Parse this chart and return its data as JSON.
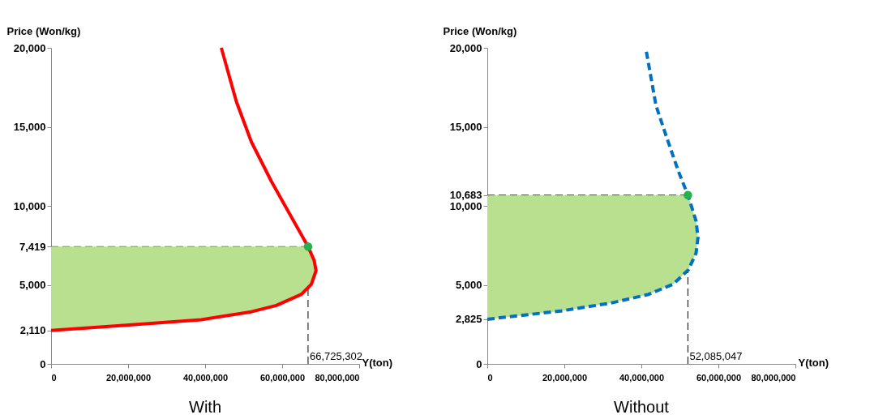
{
  "chart_data": [
    {
      "type": "line",
      "title": "With",
      "xlabel": "Y(ton)",
      "ylabel": "Price (Won/kg)",
      "xlim": [
        0,
        80000000
      ],
      "ylim": [
        0,
        20000
      ],
      "xticks": [
        {
          "value": 0,
          "label": "0"
        },
        {
          "value": 20000000,
          "label": "20,000,000"
        },
        {
          "value": 40000000,
          "label": "40,000,000"
        },
        {
          "value": 60000000,
          "label": "60,000,000"
        },
        {
          "value": 80000000,
          "label": "80,000,000"
        }
      ],
      "yticks": [
        {
          "value": 0,
          "label": "0"
        },
        {
          "value": 2110,
          "label": "2,110"
        },
        {
          "value": 5000,
          "label": "5,000"
        },
        {
          "value": 7419,
          "label": "7,419"
        },
        {
          "value": 10000,
          "label": "10,000"
        },
        {
          "value": 15000,
          "label": "15,000"
        },
        {
          "value": 20000,
          "label": "20,000"
        }
      ],
      "series": [
        {
          "color": "#ff0000",
          "line_style": "solid",
          "x": [
            0,
            19500000,
            39000000,
            52000000,
            58500000,
            65000000,
            67600000,
            68800000,
            68300000,
            66725302,
            61800000,
            57200000,
            52000000,
            48100000,
            44200000
          ],
          "values": [
            2110,
            2450,
            2800,
            3300,
            3700,
            4400,
            5050,
            5900,
            6550,
            7419,
            9550,
            11550,
            14050,
            16600,
            20000
          ]
        },
        {
          "type": "scatter",
          "color": "#22b14c",
          "marker": "circle",
          "x": [
            66725302
          ],
          "values": [
            7419
          ]
        }
      ],
      "ref_lines": [
        {
          "axis": "y",
          "value": 7419
        },
        {
          "axis": "x",
          "value": 66725302,
          "label": "66,725,302"
        }
      ]
    },
    {
      "type": "line",
      "title": "Without",
      "xlabel": "Y(ton)",
      "ylabel": "Price (Won/kg)",
      "xlim": [
        0,
        80000000
      ],
      "ylim": [
        0,
        20000
      ],
      "xticks": [
        {
          "value": 0,
          "label": "0"
        },
        {
          "value": 20000000,
          "label": "20,000,000"
        },
        {
          "value": 40000000,
          "label": "40,000,000"
        },
        {
          "value": 60000000,
          "label": "60,000,000"
        },
        {
          "value": 80000000,
          "label": "80,000,000"
        }
      ],
      "yticks": [
        {
          "value": 0,
          "label": "0"
        },
        {
          "value": 2825,
          "label": "2,825"
        },
        {
          "value": 5000,
          "label": "5,000"
        },
        {
          "value": 10000,
          "label": "10,000"
        },
        {
          "value": 10683,
          "label": "10,683"
        },
        {
          "value": 15000,
          "label": "15,000"
        },
        {
          "value": 20000,
          "label": "20,000"
        }
      ],
      "series": [
        {
          "color": "#0070c0",
          "line_style": "dashed",
          "x": [
            0,
            19100000,
            32100000,
            41900000,
            48300000,
            52200000,
            54200000,
            54700000,
            54200000,
            52085047,
            49600000,
            46400000,
            43800000,
            41200000
          ],
          "values": [
            2825,
            3350,
            3850,
            4400,
            5050,
            5950,
            7000,
            8000,
            9050,
            10683,
            12200,
            14450,
            16350,
            19900
          ]
        },
        {
          "type": "scatter",
          "color": "#22b14c",
          "marker": "circle",
          "x": [
            52085047
          ],
          "values": [
            10683
          ]
        }
      ],
      "ref_lines": [
        {
          "axis": "y",
          "value": 10683
        },
        {
          "axis": "x",
          "value": 52085047,
          "label": "52,085,047"
        }
      ]
    }
  ]
}
